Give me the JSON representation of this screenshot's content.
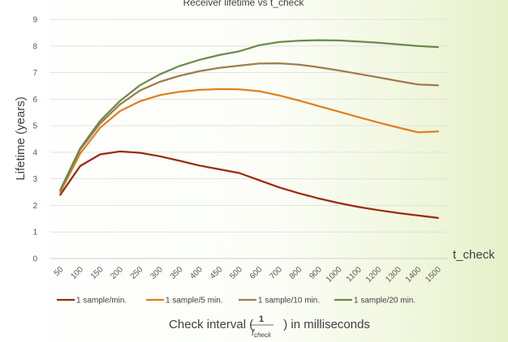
{
  "chart_data": {
    "type": "line",
    "title": "Receiver lifetime vs t_check",
    "ylabel": "Lifetime (years)",
    "xlabel": {
      "prefix": "Check interval (",
      "fraction_numerator": "1",
      "fraction_denominator": "f",
      "fraction_denominator_subscript": "check",
      "suffix": ") in milliseconds"
    },
    "x_axis_end_label": "t_check",
    "ylim": [
      0,
      9
    ],
    "yticks": [
      "0",
      "1",
      "2",
      "3",
      "4",
      "5",
      "6",
      "7",
      "8",
      "9"
    ],
    "categories": [
      "50",
      "100",
      "150",
      "200",
      "250",
      "300",
      "350",
      "400",
      "450",
      "500",
      "600",
      "700",
      "800",
      "900",
      "1000",
      "1100",
      "1200",
      "1300",
      "1400",
      "1500"
    ],
    "grid": true,
    "legend_position": "bottom",
    "series": [
      {
        "name": "1 sample/min.",
        "color": "#9c2a0c",
        "values": [
          2.4,
          3.48,
          3.92,
          4.03,
          3.98,
          3.85,
          3.68,
          3.5,
          3.36,
          3.22,
          2.95,
          2.68,
          2.46,
          2.26,
          2.09,
          1.94,
          1.82,
          1.71,
          1.62,
          1.53
        ]
      },
      {
        "name": "1 sample/5 min.",
        "color": "#e0801e",
        "values": [
          2.5,
          3.95,
          4.92,
          5.55,
          5.92,
          6.15,
          6.28,
          6.35,
          6.38,
          6.37,
          6.3,
          6.14,
          5.95,
          5.74,
          5.53,
          5.32,
          5.12,
          4.93,
          4.75,
          4.78
        ]
      },
      {
        "name": "1 sample/10 min.",
        "color": "#a07b4e",
        "values": [
          2.55,
          4.1,
          5.08,
          5.8,
          6.32,
          6.65,
          6.88,
          7.05,
          7.18,
          7.26,
          7.34,
          7.35,
          7.3,
          7.2,
          7.08,
          6.95,
          6.82,
          6.68,
          6.55,
          6.52
        ]
      },
      {
        "name": "1 sample/20 min.",
        "color": "#6c8a4a",
        "values": [
          2.58,
          4.15,
          5.18,
          5.93,
          6.52,
          6.93,
          7.25,
          7.48,
          7.66,
          7.8,
          8.03,
          8.15,
          8.2,
          8.22,
          8.21,
          8.17,
          8.12,
          8.06,
          8.0,
          7.96
        ]
      }
    ]
  }
}
